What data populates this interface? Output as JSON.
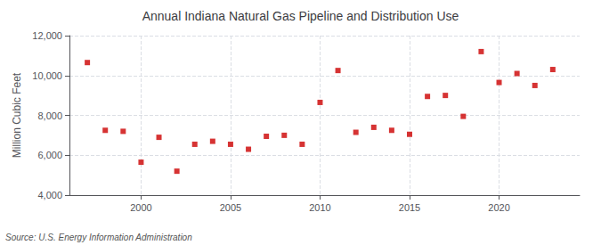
{
  "chart_data": {
    "type": "scatter",
    "title": "Annual Indiana Natural Gas Pipeline and Distribution Use",
    "ylabel": "Million Cubic Feet",
    "annotations": [
      "Source: U.S. Energy Information Administration"
    ],
    "x": [
      1997,
      1998,
      1999,
      2000,
      2001,
      2002,
      2003,
      2004,
      2005,
      2006,
      2007,
      2008,
      2009,
      2010,
      2011,
      2012,
      2013,
      2014,
      2015,
      2016,
      2017,
      2018,
      2019,
      2020,
      2021,
      2022,
      2023
    ],
    "values": [
      10650,
      7250,
      7200,
      5650,
      6900,
      5200,
      6550,
      6700,
      6550,
      6300,
      6950,
      7000,
      6550,
      8650,
      10250,
      7150,
      7400,
      7250,
      7050,
      8950,
      9000,
      7950,
      11200,
      9650,
      10100,
      9500,
      10300
    ],
    "color": "#cc0000",
    "marker": "square",
    "xlim": [
      1996,
      2024.5
    ],
    "ylim": [
      4000,
      12000
    ],
    "xticks": [
      2000,
      2005,
      2010,
      2015,
      2020
    ],
    "yticks": [
      {
        "value": 4000,
        "label": "4,000"
      },
      {
        "value": 6000,
        "label": "6,000"
      },
      {
        "value": 8000,
        "label": "8,000"
      },
      {
        "value": 10000,
        "label": "10,000"
      },
      {
        "value": 12000,
        "label": "12,000"
      }
    ],
    "grid": true
  }
}
